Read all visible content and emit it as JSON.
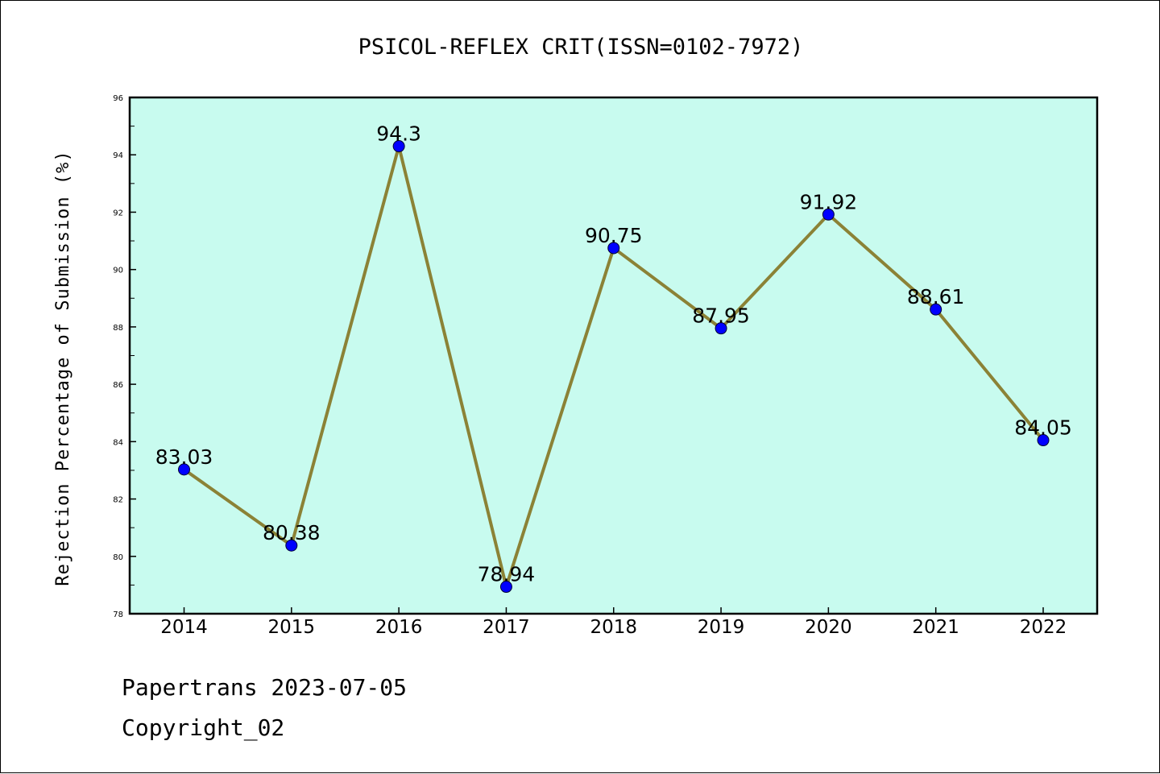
{
  "chart_data": {
    "type": "line",
    "title": "PSICOL-REFLEX CRIT(ISSN=0102-7972)",
    "xlabel": "",
    "ylabel": "Rejection Percentage of Submission (%)",
    "categories": [
      "2014",
      "2015",
      "2016",
      "2017",
      "2018",
      "2019",
      "2020",
      "2021",
      "2022"
    ],
    "values": [
      83.03,
      80.38,
      94.3,
      78.94,
      90.75,
      87.95,
      91.92,
      88.61,
      84.05
    ],
    "data_labels": [
      "83.03",
      "80.38",
      "94.3",
      "78.94",
      "90.75",
      "87.95",
      "91.92",
      "88.61",
      "84.05"
    ],
    "ylim": [
      78,
      96
    ],
    "yticks": [
      78,
      80,
      82,
      84,
      86,
      88,
      90,
      92,
      94,
      96
    ],
    "grid": false,
    "colors": {
      "plot_background": "#c8fbef",
      "line": "#8b8236",
      "marker": "#0000ff"
    }
  },
  "footer": {
    "line1": "Papertrans 2023-07-05",
    "line2": "Copyright_02"
  }
}
